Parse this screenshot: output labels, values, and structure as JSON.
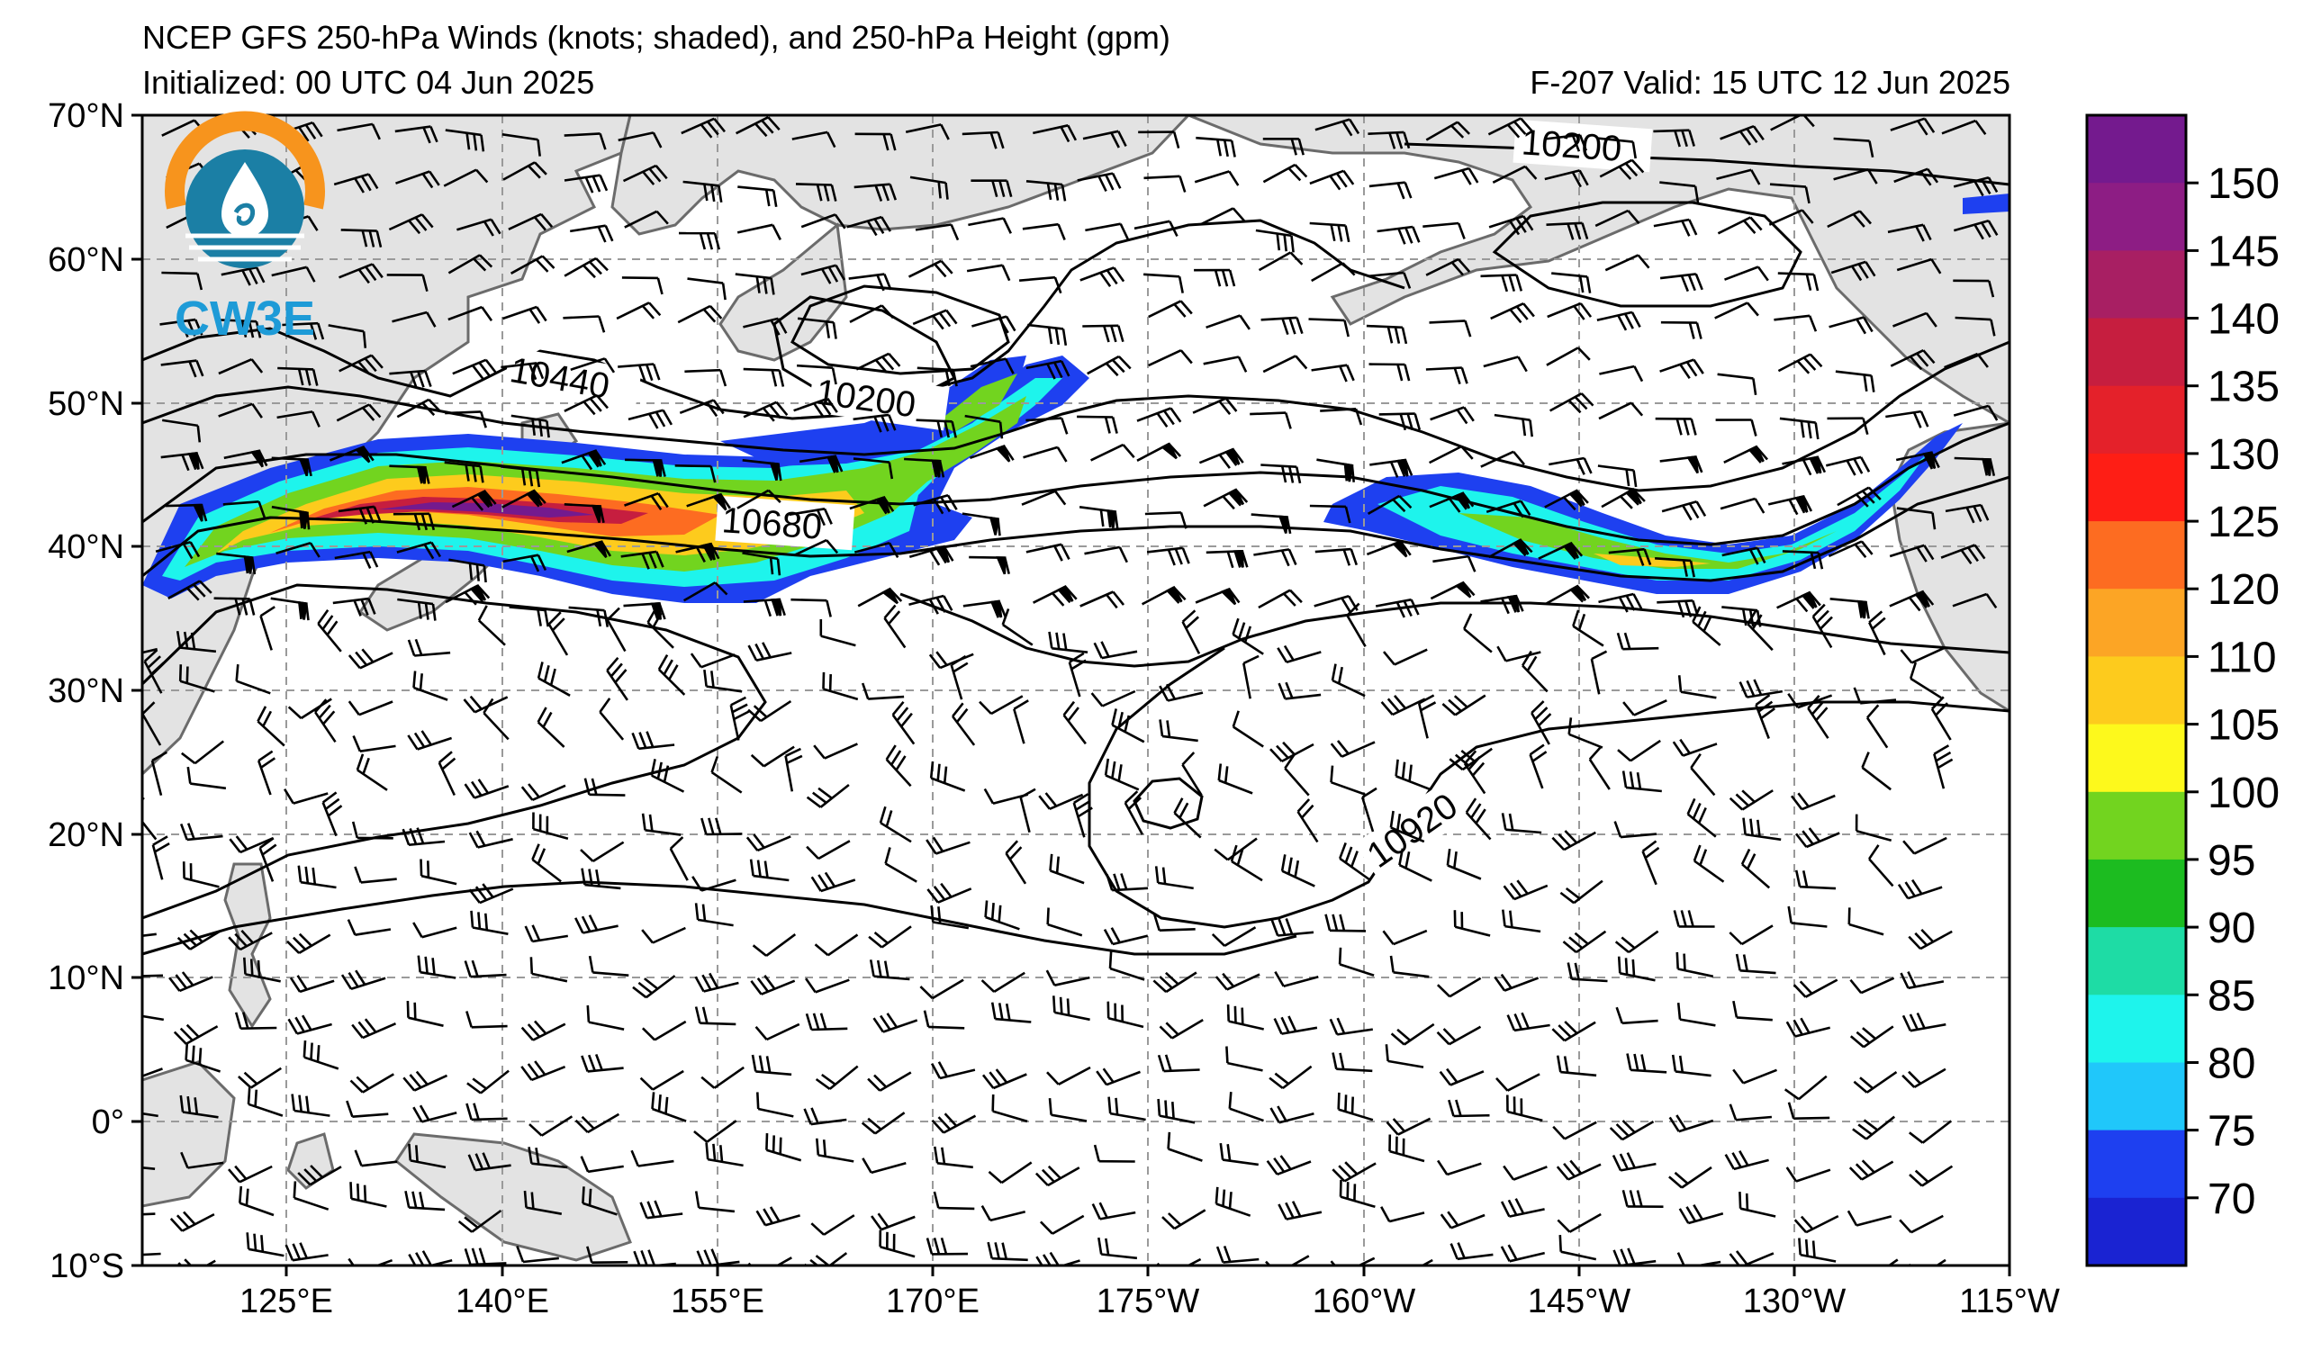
{
  "header": {
    "title": "NCEP GFS 250-hPa Winds (knots; shaded), and 250-hPa Height (gpm)",
    "initialized": "Initialized: 00 UTC 04 Jun 2025",
    "valid": "F-207  Valid: 15 UTC 12 Jun 2025"
  },
  "logo": {
    "text": "CW3E",
    "ring_color": "#f7941d",
    "wave_color": "#1b7fa5",
    "text_color": "#1e9bd7"
  },
  "axes": {
    "lat_labels": [
      "70°N",
      "60°N",
      "50°N",
      "40°N",
      "30°N",
      "20°N",
      "10°N",
      "0°",
      "10°S"
    ],
    "lon_labels": [
      "125°E",
      "140°E",
      "155°E",
      "170°E",
      "175°W",
      "160°W",
      "145°W",
      "130°W",
      "115°W"
    ]
  },
  "contour_labels": [
    "10200",
    "10440",
    "10200",
    "10680",
    "10920"
  ],
  "colorbar": {
    "ticks": [
      "150",
      "145",
      "140",
      "135",
      "130",
      "125",
      "120",
      "110",
      "105",
      "100",
      "95",
      "90",
      "85",
      "80",
      "75",
      "70"
    ],
    "colors": [
      "#741a8e",
      "#8d1d84",
      "#a81f63",
      "#c61e3f",
      "#e4212a",
      "#fe1e15",
      "#fd6c21",
      "#fca525",
      "#fdcb1d",
      "#fdf91c",
      "#72d41f",
      "#1cbc20",
      "#1edca5",
      "#1ef4ec",
      "#20c7fa",
      "#1e40f0",
      "#1a23d2"
    ]
  },
  "colors": {
    "land": "#e3e3e3",
    "coast": "#6b6b6b",
    "grid": "#9a9a9a"
  }
}
